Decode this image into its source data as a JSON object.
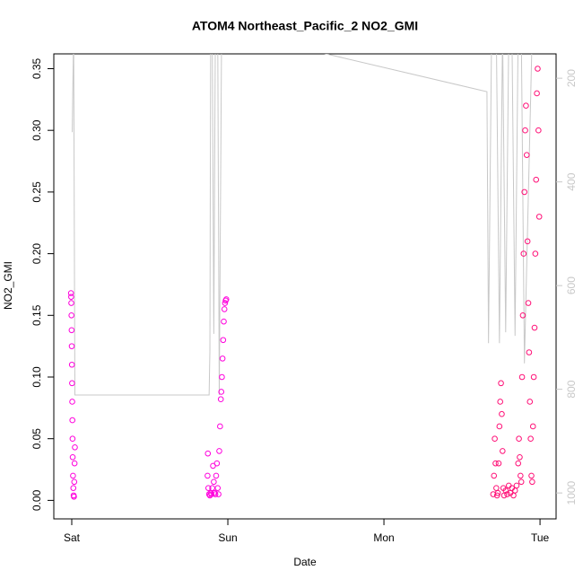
{
  "chart_data": {
    "type": "scatter",
    "title": "ATOM4 Northeast_Pacific_2 NO2_GMI",
    "xlabel": "Date",
    "ylabel": "NO2_GMI",
    "xlim": [
      -0.115,
      3.103
    ],
    "xticks": [
      {
        "value": 0,
        "label": "Sat"
      },
      {
        "value": 1,
        "label": "Sun"
      },
      {
        "value": 2,
        "label": "Mon"
      },
      {
        "value": 3,
        "label": "Tue"
      }
    ],
    "ylim": [
      -0.015,
      0.362
    ],
    "yticks": [
      {
        "value": 0,
        "label": "0.00"
      },
      0.05,
      {
        "value": 0.1,
        "label": "0.10"
      },
      0.15,
      {
        "value": 0.2,
        "label": "0.20"
      },
      0.25,
      {
        "value": 0.3,
        "label": "0.30"
      },
      0.35
    ],
    "y2lim": [
      1050,
      153
    ],
    "y2ticks": [
      200,
      400,
      600,
      800,
      1000
    ],
    "y2color": "#c8c8c8",
    "series": [
      {
        "color": "#ff00dd",
        "x": [
          -0.005,
          -0.004,
          -0.003,
          -0.002,
          -0.001,
          0,
          0.001,
          0.002,
          0.003,
          0.004,
          0.005,
          0.006,
          0.008,
          0.01,
          0.012,
          0.014,
          0.016,
          0.018,
          0.02,
          0.87,
          0.872,
          0.875,
          0.88,
          0.885,
          0.89,
          0.895,
          0.9,
          0.905,
          0.91,
          0.915,
          0.92,
          0.925,
          0.93,
          0.935,
          0.94,
          0.945,
          0.95,
          0.955,
          0.958,
          0.962,
          0.966,
          0.97,
          0.974,
          0.978,
          0.982,
          0.986,
          0.99
        ],
        "values": [
          0.168,
          0.165,
          0.16,
          0.15,
          0.138,
          0.125,
          0.11,
          0.095,
          0.08,
          0.065,
          0.05,
          0.035,
          0.02,
          0.01,
          0.004,
          0.003,
          0.015,
          0.03,
          0.043,
          0.02,
          0.038,
          0.01,
          0.005,
          0.004,
          0.006,
          0.005,
          0.01,
          0.028,
          0.015,
          0.006,
          0.005,
          0.02,
          0.03,
          0.01,
          0.005,
          0.04,
          0.06,
          0.082,
          0.088,
          0.1,
          0.115,
          0.13,
          0.145,
          0.155,
          0.16,
          0.162,
          0.163
        ]
      },
      {
        "color": "#ff1077",
        "x": [
          2.7,
          2.705,
          2.71,
          2.715,
          2.72,
          2.725,
          2.73,
          2.735,
          2.74,
          2.745,
          2.75,
          2.755,
          2.76,
          2.765,
          2.77,
          2.78,
          2.79,
          2.8,
          2.81,
          2.82,
          2.83,
          2.84,
          2.85,
          2.86,
          2.865,
          2.87,
          2.875,
          2.88,
          2.885,
          2.89,
          2.895,
          2.9,
          2.905,
          2.91,
          2.915,
          2.92,
          2.925,
          2.93,
          2.935,
          2.94,
          2.945,
          2.95,
          2.955,
          2.96,
          2.965,
          2.97,
          2.975,
          2.98,
          2.985,
          2.99,
          2.995
        ],
        "values": [
          0.005,
          0.02,
          0.05,
          0.03,
          0.01,
          0.004,
          0.006,
          0.03,
          0.06,
          0.08,
          0.095,
          0.07,
          0.04,
          0.01,
          0.004,
          0.008,
          0.005,
          0.012,
          0.006,
          0.01,
          0.004,
          0.008,
          0.012,
          0.03,
          0.05,
          0.035,
          0.02,
          0.015,
          0.1,
          0.15,
          0.2,
          0.25,
          0.3,
          0.32,
          0.28,
          0.21,
          0.16,
          0.12,
          0.08,
          0.05,
          0.02,
          0.015,
          0.06,
          0.1,
          0.14,
          0.2,
          0.26,
          0.33,
          0.35,
          0.3,
          0.23
        ]
      },
      {
        "type": "line",
        "axis": "y2",
        "color": "#c8c8c8",
        "x": [
          0.003,
          0.012,
          0.02,
          0.88,
          0.885,
          0.89,
          0.9,
          0.91,
          0.92,
          0.935,
          0.945,
          0.96,
          1.63,
          2.66,
          2.67,
          2.69,
          2.72,
          2.74,
          2.76,
          2.78,
          2.8,
          2.82,
          2.84,
          2.86,
          2.88,
          2.9,
          2.95,
          2.97
        ],
        "values": [
          304,
          110,
          811,
          811,
          725,
          110,
          110,
          693,
          110,
          110,
          811,
          110,
          153,
          226,
          711,
          110,
          110,
          711,
          110,
          690,
          110,
          110,
          697,
          110,
          110,
          750,
          110,
          110
        ]
      }
    ]
  }
}
